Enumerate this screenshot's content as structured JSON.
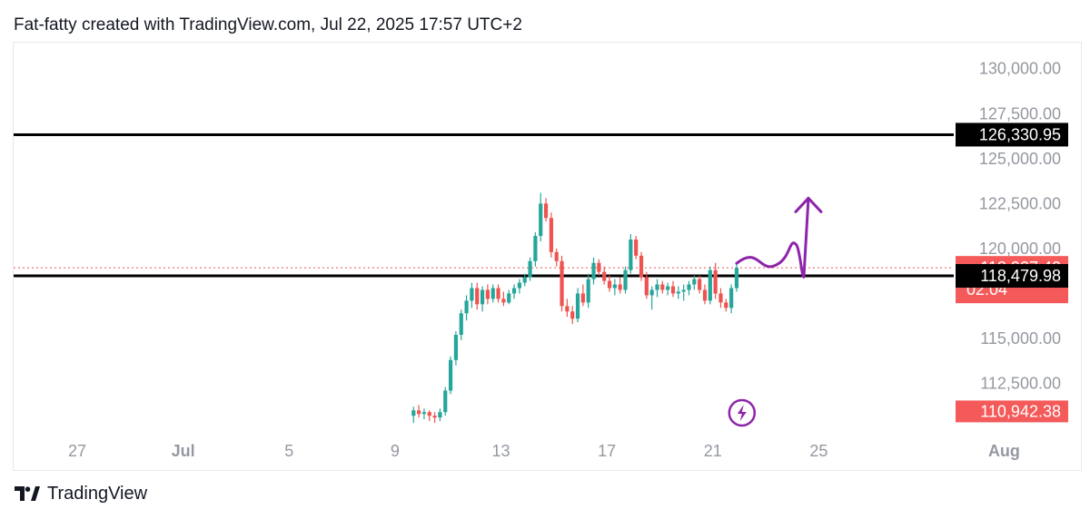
{
  "header": {
    "text": "Fat-fatty created with TradingView.com, Jul 22, 2025 17:57 UTC+2"
  },
  "footer": {
    "brand": "TradingView",
    "logo_icon": "tradingview-logo-icon"
  },
  "colors": {
    "up": "#26a69a",
    "down": "#ef5350",
    "level_line": "#000000",
    "forecast": "#8e24aa",
    "price_label_red": "#f55a5a",
    "axis_text": "#9598a1"
  },
  "chart_data": {
    "type": "candlestick",
    "symbol_note": "",
    "price_axis": {
      "ticks": [
        {
          "value": 130000,
          "label": "130,000.00"
        },
        {
          "value": 127500,
          "label": "127,500.00"
        },
        {
          "value": 125000,
          "label": "125,000.00"
        },
        {
          "value": 122500,
          "label": "122,500.00"
        },
        {
          "value": 120000,
          "label": "120,000.00"
        },
        {
          "value": 115000,
          "label": "115,000.00"
        },
        {
          "value": 112500,
          "label": "112,500.00"
        }
      ],
      "range": [
        109500,
        131500
      ]
    },
    "time_axis": {
      "ticks": [
        {
          "t": 27,
          "label": "27",
          "bold": false
        },
        {
          "t": 31,
          "label": "Jul",
          "bold": true
        },
        {
          "t": 35,
          "label": "5",
          "bold": false
        },
        {
          "t": 39,
          "label": "9",
          "bold": false
        },
        {
          "t": 43,
          "label": "13",
          "bold": false
        },
        {
          "t": 47,
          "label": "17",
          "bold": false
        },
        {
          "t": 51,
          "label": "21",
          "bold": false
        },
        {
          "t": 55,
          "label": "25",
          "bold": false
        },
        {
          "t": 62,
          "label": "Aug",
          "bold": true
        }
      ],
      "range": [
        24.6,
        64.9
      ]
    },
    "levels": [
      {
        "name": "resistance",
        "value": 126330.95,
        "label": "126,330.95"
      },
      {
        "name": "support",
        "value": 118479.98,
        "label": "118,479.98"
      }
    ],
    "current_price": {
      "value": 118927.4,
      "label": "118,927.40",
      "countdown": "02:04"
    },
    "low_marker": {
      "value": 110942.38,
      "label": "110,942.38"
    },
    "candles": [
      [
        39.7,
        110700,
        111200,
        110300,
        111000
      ],
      [
        39.9,
        111000,
        111300,
        110600,
        110800
      ],
      [
        40.1,
        110800,
        111100,
        110500,
        110900
      ],
      [
        40.3,
        110900,
        111000,
        110400,
        110700
      ],
      [
        40.5,
        110700,
        110900,
        110300,
        110600
      ],
      [
        40.7,
        110600,
        111100,
        110400,
        110900
      ],
      [
        40.9,
        110900,
        112300,
        110700,
        112100
      ],
      [
        41.1,
        112100,
        114000,
        111900,
        113800
      ],
      [
        41.3,
        113800,
        115400,
        113500,
        115200
      ],
      [
        41.5,
        115200,
        116600,
        114900,
        116400
      ],
      [
        41.7,
        116400,
        117400,
        116000,
        117100
      ],
      [
        41.9,
        117100,
        118100,
        116700,
        117800
      ],
      [
        42.1,
        117800,
        118100,
        116600,
        116900
      ],
      [
        42.3,
        116900,
        117900,
        116500,
        117700
      ],
      [
        42.5,
        117700,
        118000,
        116900,
        117200
      ],
      [
        42.7,
        117200,
        118000,
        117000,
        117800
      ],
      [
        42.9,
        117800,
        118000,
        117000,
        117200
      ],
      [
        43.1,
        117200,
        117600,
        116800,
        117000
      ],
      [
        43.3,
        117000,
        117700,
        116900,
        117500
      ],
      [
        43.5,
        117500,
        118000,
        117200,
        117800
      ],
      [
        43.7,
        117800,
        118300,
        117500,
        118100
      ],
      [
        43.9,
        118100,
        118600,
        117900,
        118400
      ],
      [
        44.1,
        118400,
        119500,
        118200,
        119300
      ],
      [
        44.3,
        119300,
        120900,
        119000,
        120700
      ],
      [
        44.5,
        120700,
        123100,
        120400,
        122500
      ],
      [
        44.7,
        122500,
        122800,
        121500,
        121700
      ],
      [
        44.9,
        121700,
        122000,
        119500,
        119800
      ],
      [
        45.1,
        119800,
        120000,
        119000,
        119300
      ],
      [
        45.3,
        119300,
        119600,
        116500,
        116800
      ],
      [
        45.5,
        116800,
        117200,
        116200,
        116500
      ],
      [
        45.7,
        116500,
        116800,
        115800,
        116100
      ],
      [
        45.9,
        116100,
        117800,
        115900,
        117500
      ],
      [
        46.1,
        117500,
        118000,
        116800,
        117000
      ],
      [
        46.3,
        117000,
        118600,
        116700,
        118300
      ],
      [
        46.5,
        118300,
        119500,
        118000,
        119200
      ],
      [
        46.7,
        119200,
        119400,
        118500,
        118700
      ],
      [
        46.9,
        118700,
        119000,
        118000,
        118200
      ],
      [
        47.1,
        118200,
        118500,
        117600,
        117800
      ],
      [
        47.3,
        117800,
        118300,
        117400,
        118000
      ],
      [
        47.5,
        118000,
        118400,
        117500,
        117700
      ],
      [
        47.7,
        117700,
        119000,
        117500,
        118800
      ],
      [
        47.9,
        118800,
        120800,
        118600,
        120500
      ],
      [
        48.1,
        120500,
        120700,
        119400,
        119600
      ],
      [
        48.3,
        119600,
        119800,
        118200,
        118400
      ],
      [
        48.5,
        118400,
        118700,
        117200,
        117400
      ],
      [
        48.7,
        117400,
        117900,
        116600,
        117700
      ],
      [
        48.9,
        117700,
        118300,
        117300,
        118000
      ],
      [
        49.1,
        118000,
        118200,
        117500,
        117700
      ],
      [
        49.3,
        117700,
        118100,
        117400,
        117900
      ],
      [
        49.5,
        117900,
        118200,
        117300,
        117500
      ],
      [
        49.7,
        117500,
        117900,
        117200,
        117600
      ],
      [
        49.9,
        117600,
        118000,
        117100,
        117700
      ],
      [
        50.1,
        117700,
        118200,
        117400,
        118000
      ],
      [
        50.3,
        118000,
        118500,
        117700,
        118300
      ],
      [
        50.5,
        118300,
        118500,
        117500,
        117700
      ],
      [
        50.7,
        117700,
        118000,
        116900,
        117100
      ],
      [
        50.9,
        117100,
        119000,
        116900,
        118800
      ],
      [
        51.1,
        118800,
        119200,
        117200,
        117500
      ],
      [
        51.3,
        117500,
        117800,
        116700,
        117000
      ],
      [
        51.5,
        117000,
        117200,
        116500,
        116700
      ],
      [
        51.7,
        116700,
        118000,
        116400,
        117800
      ],
      [
        51.9,
        117800,
        119200,
        117600,
        118927.4
      ]
    ],
    "forecast_path_note": "",
    "alert_icon": "lightning-icon"
  }
}
